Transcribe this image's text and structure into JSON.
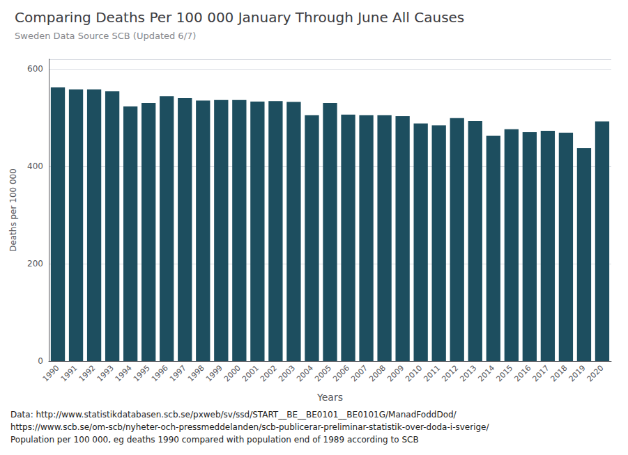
{
  "chart_data": {
    "type": "bar",
    "title": "Comparing Deaths Per 100 000 January Through June All Causes",
    "subtitle": "Sweden Data Source SCB (Updated 6/7)",
    "xlabel": "Years",
    "ylabel": "Deaths per 100 000",
    "color": "#1d4e5f",
    "categories": [
      "1990",
      "1991",
      "1992",
      "1993",
      "1994",
      "1995",
      "1996",
      "1997",
      "1998",
      "1999",
      "2000",
      "2001",
      "2002",
      "2003",
      "2004",
      "2005",
      "2006",
      "2007",
      "2008",
      "2009",
      "2010",
      "2011",
      "2012",
      "2013",
      "2014",
      "2015",
      "2016",
      "2017",
      "2018",
      "2019",
      "2020"
    ],
    "values": [
      562,
      558,
      558,
      554,
      523,
      530,
      544,
      540,
      535,
      536,
      536,
      533,
      534,
      532,
      505,
      530,
      506,
      505,
      505,
      503,
      488,
      484,
      499,
      493,
      463,
      476,
      470,
      473,
      469,
      437,
      492
    ],
    "ylim": [
      0,
      620
    ],
    "yticks": [
      0,
      200,
      400,
      600
    ],
    "grid": true,
    "annotations": [
      "Data: http://www.statistikdatabasen.scb.se/pxweb/sv/ssd/START__BE__BE0101__BE0101G/ManadFoddDod/",
      "https://www.scb.se/om-scb/nyheter-och-pressmeddelanden/scb-publicerar-preliminar-statistik-over-doda-i-sverige/",
      "Population per 100 000, eg deaths 1990 compared with population end of 1989 according to SCB"
    ]
  }
}
